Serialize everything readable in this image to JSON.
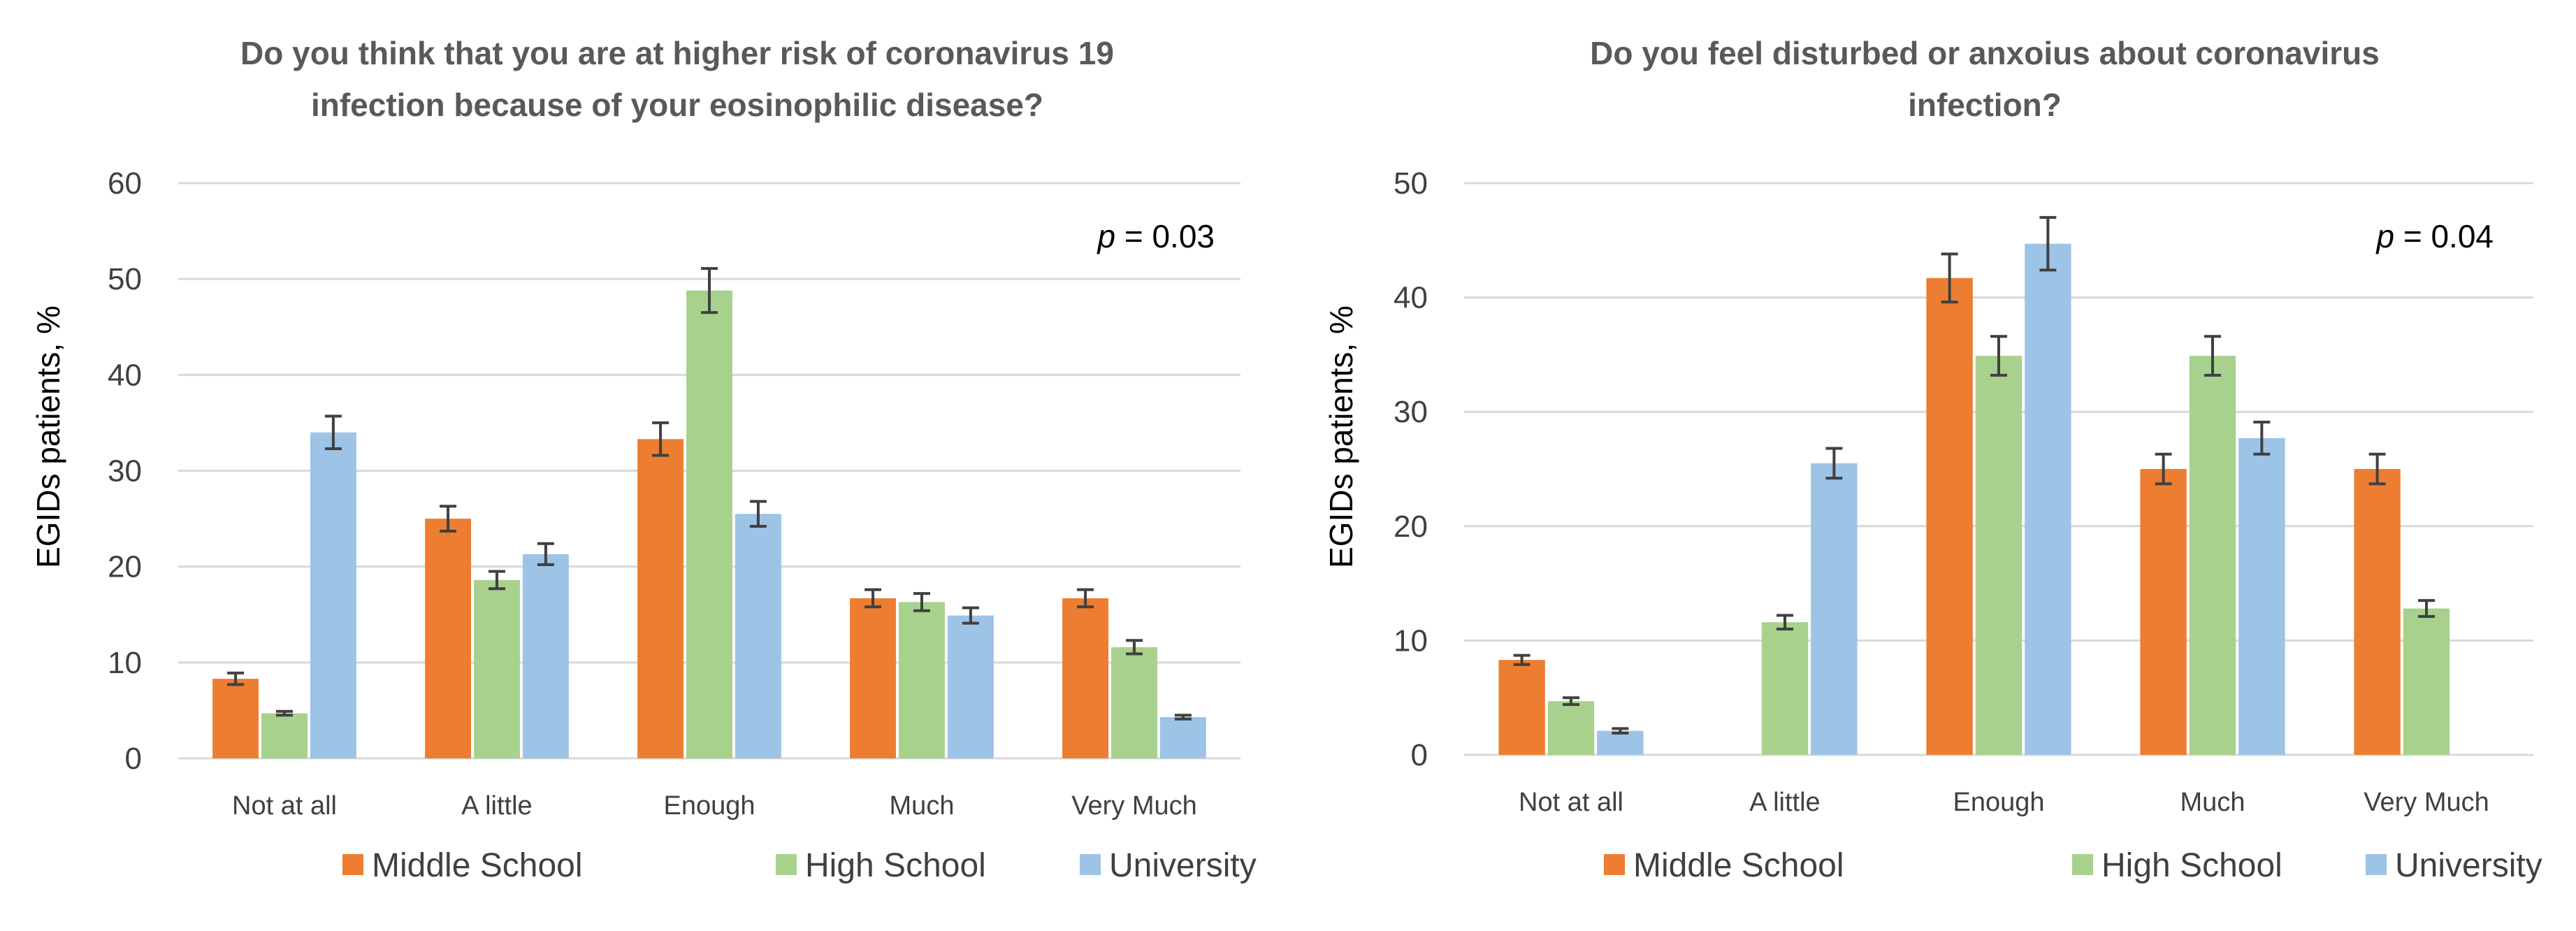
{
  "chart_data": [
    {
      "type": "bar",
      "title": "Do you think that you are at higher risk of coronavirus 19 infection because of your eosinophilic disease?",
      "title_lines": [
        "Do you think that you are at higher risk of coronavirus 19",
        "infection because of your eosinophilic disease?"
      ],
      "ylabel": "EGIDs patients, %",
      "xlabel": "",
      "ylim": [
        0,
        60
      ],
      "yticks": [
        0,
        10,
        20,
        30,
        40,
        50,
        60
      ],
      "p_label": "p",
      "p_value": " = 0.03",
      "categories": [
        "Not at all",
        "A little",
        "Enough",
        "Much",
        "Very Much"
      ],
      "series": [
        {
          "name": "Middle School",
          "color": "#ED7D31",
          "values": [
            8.3,
            25,
            33.3,
            16.7,
            16.7
          ],
          "errors": [
            0.6,
            1.3,
            1.7,
            0.9,
            0.9
          ]
        },
        {
          "name": "High School",
          "color": "#A9D18E",
          "values": [
            4.7,
            18.6,
            48.8,
            16.3,
            11.6
          ],
          "errors": [
            0.2,
            0.9,
            2.3,
            0.9,
            0.7
          ]
        },
        {
          "name": "University",
          "color": "#9DC3E6",
          "values": [
            34,
            21.3,
            25.5,
            14.9,
            4.3
          ],
          "errors": [
            1.7,
            1.1,
            1.3,
            0.8,
            0.2
          ]
        }
      ],
      "legend_position": "bottom"
    },
    {
      "type": "bar",
      "title": "Do you feel disturbed or anxoius about coronavirus infection?",
      "title_lines": [
        "Do you feel disturbed or anxoius about coronavirus",
        "infection?"
      ],
      "ylabel": "EGIDs patients, %",
      "xlabel": "",
      "ylim": [
        0,
        50
      ],
      "yticks": [
        0,
        10,
        20,
        30,
        40,
        50
      ],
      "p_label": "p",
      "p_value": " = 0.04",
      "categories": [
        "Not at all",
        "A little",
        "Enough",
        "Much",
        "Very Much"
      ],
      "series": [
        {
          "name": "Middle School",
          "color": "#ED7D31",
          "values": [
            8.3,
            0,
            41.7,
            25,
            25
          ],
          "errors": [
            0.4,
            0,
            2.1,
            1.3,
            1.3
          ]
        },
        {
          "name": "High School",
          "color": "#A9D18E",
          "values": [
            4.7,
            11.6,
            34.9,
            34.9,
            12.8
          ],
          "errors": [
            0.3,
            0.6,
            1.7,
            1.7,
            0.7
          ]
        },
        {
          "name": "University",
          "color": "#9DC3E6",
          "values": [
            2.1,
            25.5,
            44.7,
            27.7,
            0
          ],
          "errors": [
            0.2,
            1.3,
            2.3,
            1.4,
            0
          ]
        }
      ],
      "legend_position": "bottom"
    }
  ]
}
